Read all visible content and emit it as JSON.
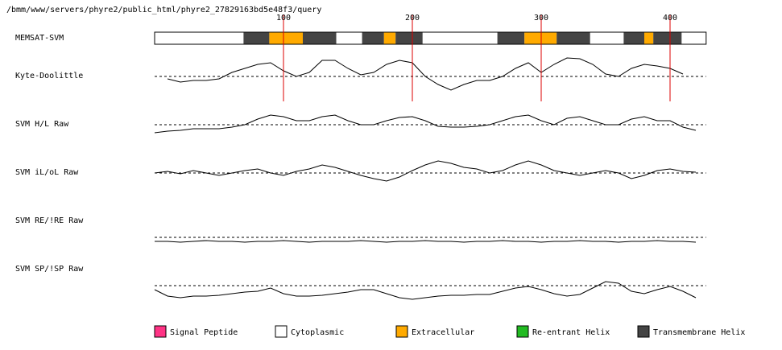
{
  "header": {
    "path": "/bmm/www/servers/phyre2/public_html/phyre2_27829163bd5e48f3/query"
  },
  "ticks": [
    100,
    200,
    300,
    400
  ],
  "length": 428,
  "residues": [
    0,
    10,
    20,
    30,
    40,
    50,
    60,
    70,
    80,
    90,
    100,
    110,
    120,
    130,
    140,
    150,
    160,
    170,
    180,
    190,
    200,
    210,
    220,
    230,
    240,
    250,
    260,
    270,
    280,
    290,
    300,
    310,
    320,
    330,
    340,
    350,
    360,
    370,
    380,
    390,
    400,
    410,
    420
  ],
  "memsat": {
    "label": "MEMSAT-SVM",
    "segments": [
      {
        "start": 0,
        "end": 69,
        "type": 1
      },
      {
        "start": 69,
        "end": 89,
        "type": 4
      },
      {
        "start": 89,
        "end": 115,
        "type": 2
      },
      {
        "start": 115,
        "end": 141,
        "type": 4
      },
      {
        "start": 141,
        "end": 161,
        "type": 1
      },
      {
        "start": 161,
        "end": 178,
        "type": 4
      },
      {
        "start": 178,
        "end": 187,
        "type": 2
      },
      {
        "start": 187,
        "end": 208,
        "type": 4
      },
      {
        "start": 208,
        "end": 266,
        "type": 1
      },
      {
        "start": 266,
        "end": 287,
        "type": 4
      },
      {
        "start": 287,
        "end": 312,
        "type": 2
      },
      {
        "start": 312,
        "end": 338,
        "type": 4
      },
      {
        "start": 338,
        "end": 364,
        "type": 1
      },
      {
        "start": 364,
        "end": 380,
        "type": 4
      },
      {
        "start": 380,
        "end": 387,
        "type": 2
      },
      {
        "start": 387,
        "end": 409,
        "type": 4
      },
      {
        "start": 409,
        "end": 428,
        "type": 1
      }
    ]
  },
  "tracks": [
    {
      "label": "Kyte-Doolittle",
      "values": [
        null,
        -3,
        -7,
        -5,
        -5,
        -3,
        5,
        10,
        15,
        17,
        7,
        0,
        5,
        20,
        20,
        10,
        2,
        5,
        15,
        20,
        17,
        0,
        -10,
        -17,
        -10,
        -5,
        -5,
        0,
        10,
        17,
        5,
        15,
        23,
        22,
        15,
        3,
        0,
        10,
        15,
        13,
        10,
        3,
        null
      ]
    },
    {
      "label": "SVM H/L Raw",
      "values": [
        -10,
        -8,
        -7,
        -5,
        -5,
        -5,
        -3,
        0,
        7,
        12,
        10,
        5,
        5,
        10,
        12,
        5,
        0,
        0,
        5,
        9,
        10,
        5,
        -2,
        -3,
        -3,
        -2,
        0,
        5,
        10,
        12,
        5,
        0,
        8,
        10,
        5,
        0,
        0,
        7,
        10,
        5,
        5,
        -3,
        -7
      ]
    },
    {
      "label": "SVM iL/oL Raw",
      "values": [
        0,
        2,
        -1,
        3,
        0,
        -3,
        0,
        3,
        5,
        0,
        -3,
        2,
        5,
        10,
        7,
        2,
        -3,
        -7,
        -10,
        -5,
        3,
        10,
        15,
        12,
        7,
        5,
        0,
        3,
        10,
        15,
        10,
        3,
        0,
        -3,
        0,
        3,
        0,
        -7,
        -3,
        3,
        5,
        2,
        1
      ]
    },
    {
      "label": "SVM RE/!RE Raw",
      "values": [
        -5,
        -5,
        -6,
        -5,
        -4,
        -5,
        -5,
        -6,
        -5,
        -5,
        -4,
        -5,
        -6,
        -5,
        -5,
        -5,
        -4,
        -5,
        -6,
        -5,
        -5,
        -4,
        -5,
        -5,
        -6,
        -5,
        -5,
        -4,
        -5,
        -5,
        -6,
        -5,
        -5,
        -4,
        -5,
        -5,
        -6,
        -5,
        -5,
        -4,
        -5,
        -5,
        -6
      ]
    },
    {
      "label": "SVM SP/!SP Raw",
      "values": [
        -5,
        -13,
        -15,
        -13,
        -13,
        -12,
        -10,
        -8,
        -7,
        -3,
        -10,
        -13,
        -13,
        -12,
        -10,
        -8,
        -5,
        -5,
        -10,
        -15,
        -17,
        -15,
        -13,
        -12,
        -12,
        -11,
        -11,
        -7,
        -3,
        -1,
        -5,
        -10,
        -13,
        -11,
        -3,
        5,
        3,
        -7,
        -10,
        -5,
        -1,
        -7,
        -15
      ]
    }
  ],
  "legend": [
    {
      "label": "Signal Peptide",
      "color": "#ff3385"
    },
    {
      "label": "Cytoplasmic",
      "color": "#ffffff"
    },
    {
      "label": "Extracellular",
      "color": "#ffaa00"
    },
    {
      "label": "Re-entrant Helix",
      "color": "#22bb22"
    },
    {
      "label": "Transmembrane Helix",
      "color": "#444444"
    }
  ]
}
